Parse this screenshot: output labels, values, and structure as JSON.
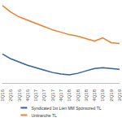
{
  "chart_data": {
    "type": "line",
    "categories": [
      "1Q16",
      "2Q16",
      "3Q16",
      "4Q16",
      "1Q17",
      "2Q17",
      "3Q17",
      "4Q17",
      "1Q18",
      "2Q18",
      "3Q18",
      "4Q18",
      "1Q19",
      "2Q19",
      "3Q19"
    ],
    "series": [
      {
        "name": "Syndicated 1st Lien MM Sponsored TL",
        "color": "#2f5fa7",
        "values": [
          3.6,
          3.0,
          2.6,
          2.2,
          1.9,
          1.6,
          1.3,
          1.1,
          1.0,
          1.2,
          1.5,
          1.8,
          1.9,
          1.8,
          1.7
        ]
      },
      {
        "name": "Unitranche TL",
        "color": "#f07f2b",
        "values": [
          9.6,
          8.8,
          8.2,
          7.8,
          7.4,
          7.0,
          6.6,
          6.3,
          6.0,
          5.8,
          5.5,
          5.2,
          5.6,
          5.0,
          4.9
        ]
      }
    ],
    "ylim": [
      0,
      10
    ],
    "tick_labels": "x",
    "grid": false,
    "legend": "bottom"
  }
}
